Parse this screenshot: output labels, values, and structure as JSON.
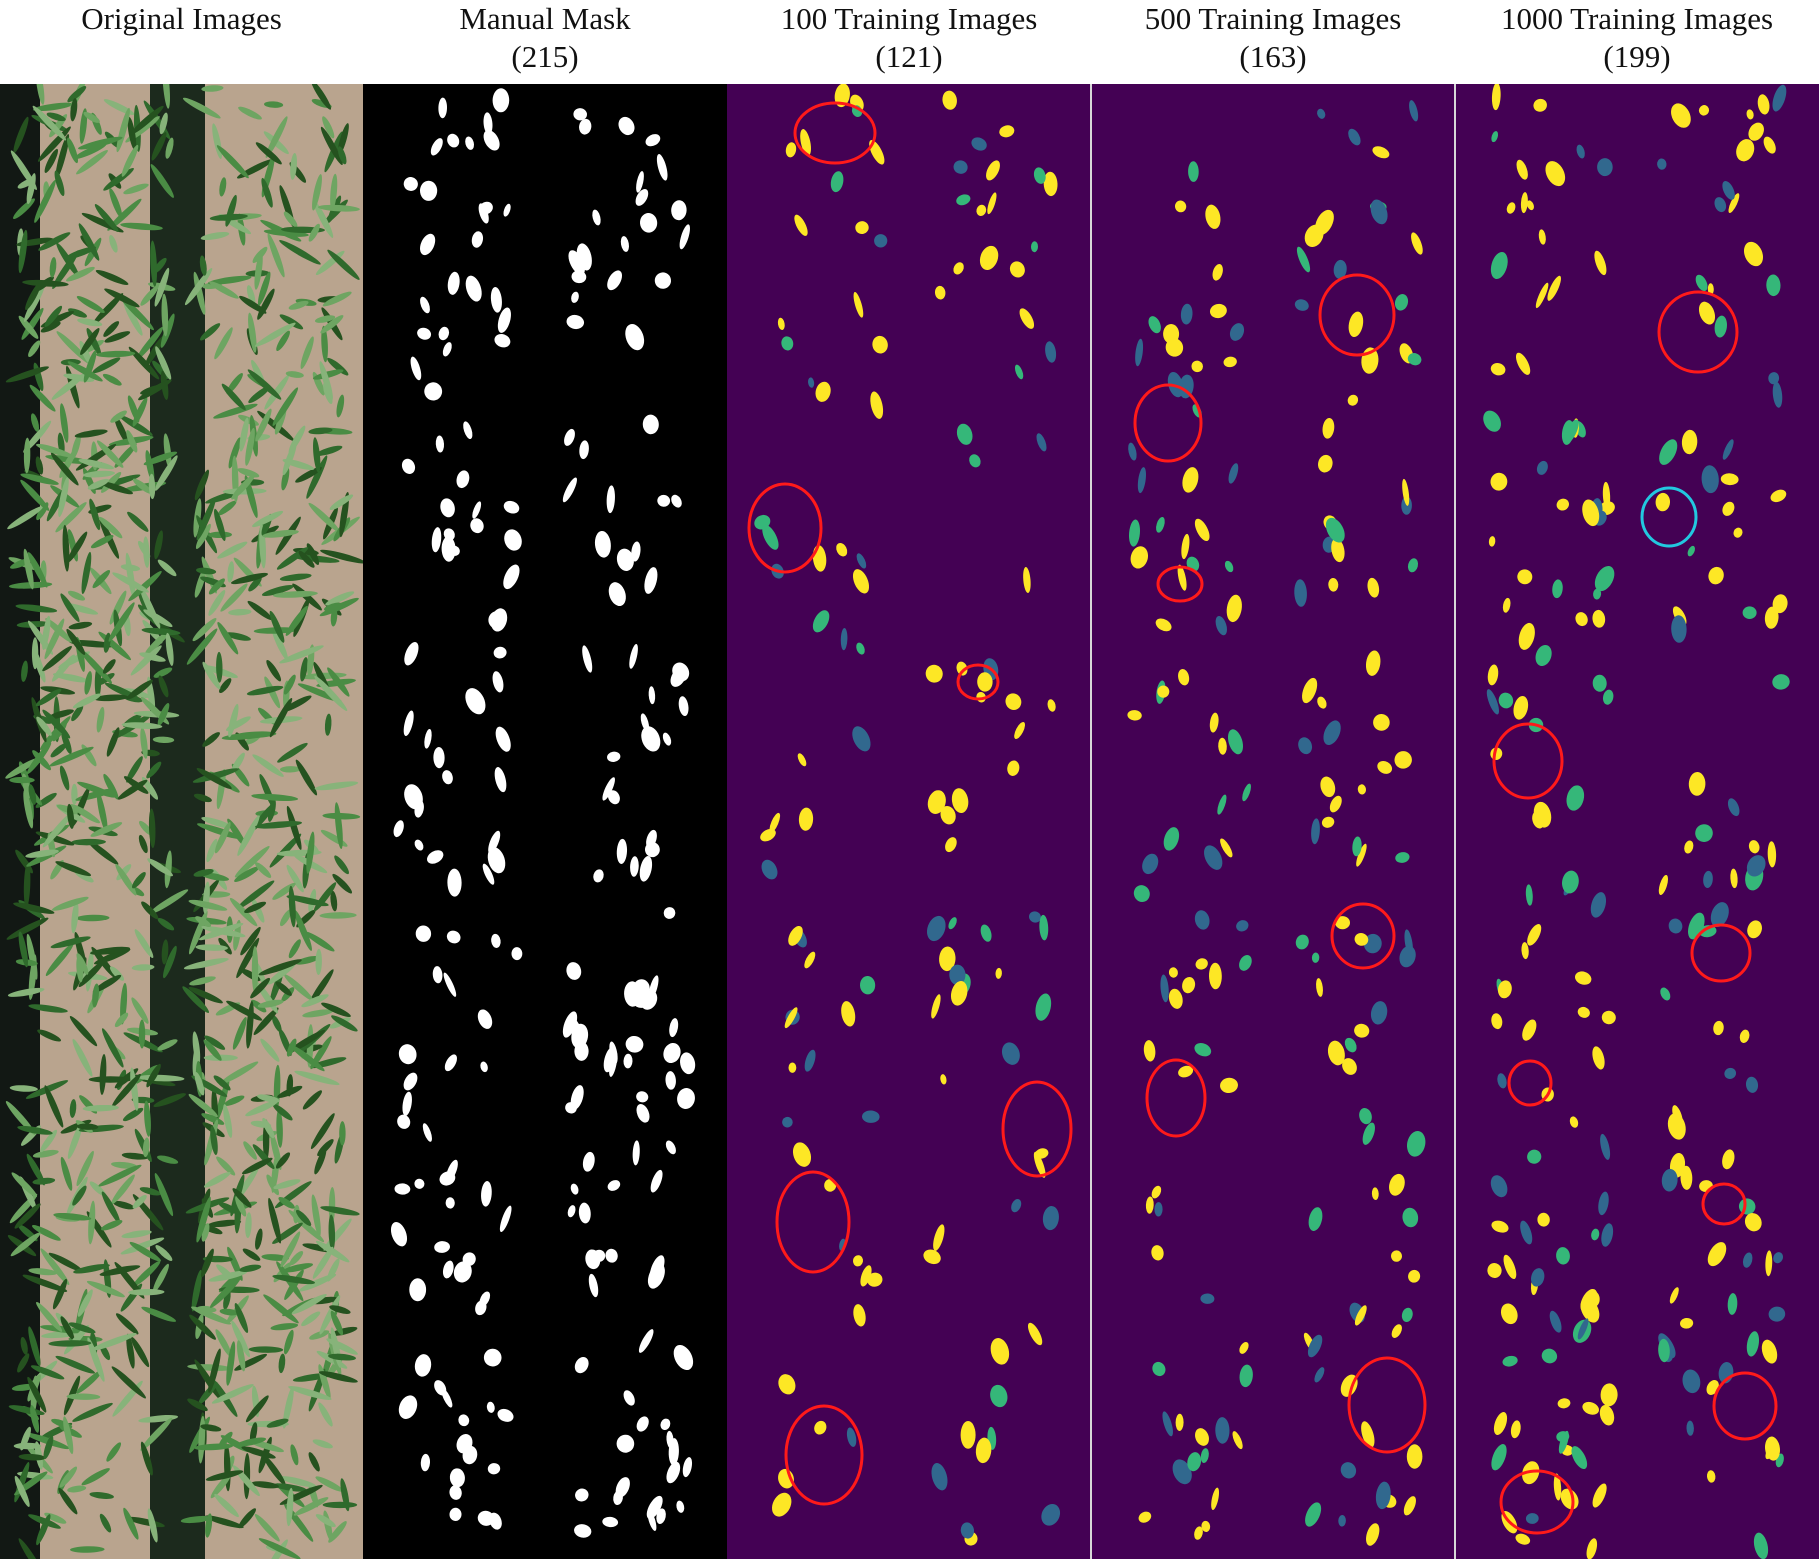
{
  "columns": [
    {
      "id": "original",
      "title": "Original Images",
      "count": ""
    },
    {
      "id": "manual",
      "title": "Manual Mask",
      "count": "(215)"
    },
    {
      "id": "t100",
      "title": "100 Training Images",
      "count": "(121)"
    },
    {
      "id": "t500",
      "title": "500 Training Images",
      "count": "(163)"
    },
    {
      "id": "t1000",
      "title": "1000 Training Images",
      "count": "(199)"
    }
  ],
  "colors": {
    "mask_background": "#000000",
    "mask_foreground": "#ffffff",
    "prediction_background": "#440154",
    "prediction_high": "#fde725",
    "prediction_mid": "#35b779",
    "prediction_low": "#31688e",
    "missed_marker": "#ff1a1a",
    "false_positive_marker": "#22c8e0",
    "soil": "#b9a48e",
    "foliage": "#3f7f3a",
    "shadow": "#121814"
  }
}
